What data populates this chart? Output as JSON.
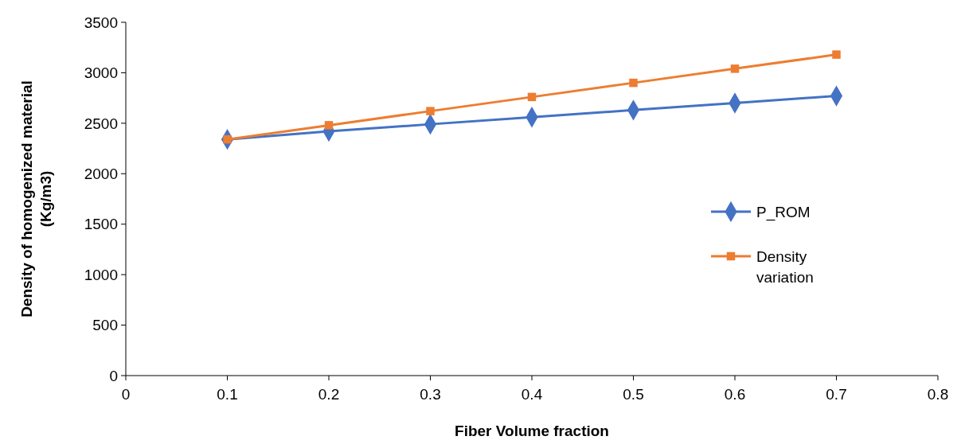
{
  "chart_data": {
    "type": "line",
    "xlabel": "Fiber Volume fraction",
    "ylabel": "Density of homogenized material\n(Kg/m3)",
    "x": [
      0.1,
      0.2,
      0.3,
      0.4,
      0.5,
      0.6,
      0.7
    ],
    "series": [
      {
        "name": "P_ROM",
        "color": "#4472c4",
        "marker": "diamond",
        "values": [
          2340,
          2420,
          2490,
          2560,
          2630,
          2700,
          2770
        ]
      },
      {
        "name": "Density variation",
        "color": "#ed7d31",
        "marker": "square",
        "values": [
          2340,
          2480,
          2620,
          2760,
          2900,
          3040,
          3180
        ]
      }
    ],
    "xlim": [
      0,
      0.8
    ],
    "xticks": [
      0,
      0.1,
      0.2,
      0.3,
      0.4,
      0.5,
      0.6,
      0.7,
      0.8
    ],
    "ylim": [
      0,
      3500
    ],
    "yticks": [
      0,
      500,
      1000,
      1500,
      2000,
      2500,
      3000,
      3500
    ],
    "grid": false,
    "legend": "right",
    "line_style": "solid"
  }
}
